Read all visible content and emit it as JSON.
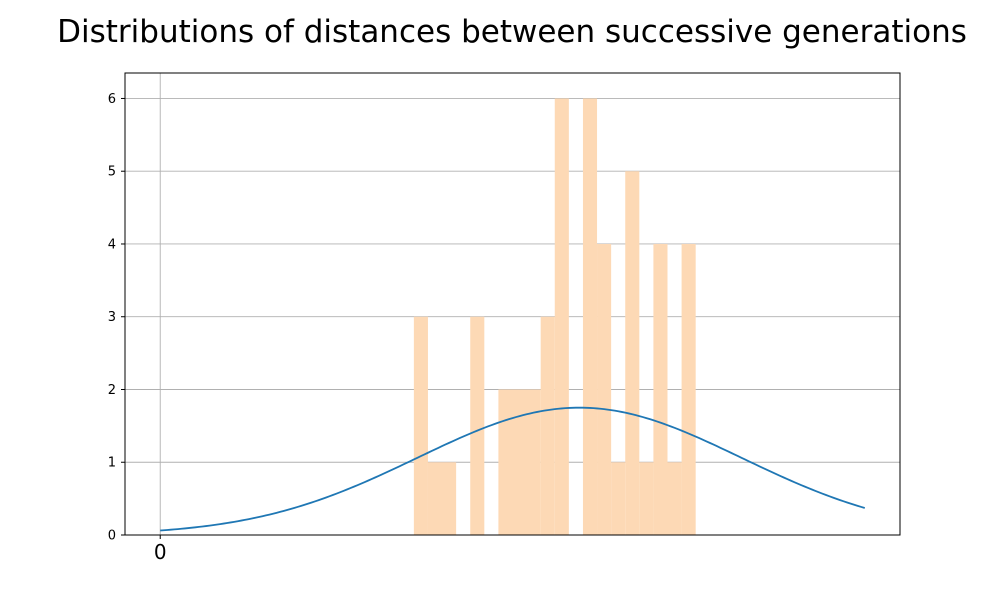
{
  "chart_data": {
    "type": "bar",
    "title": "Distributions of distances between successive generations",
    "xlabel": "",
    "ylabel": "",
    "ylim": [
      0,
      6.35
    ],
    "xlim": [
      -0.5,
      10.5
    ],
    "x_ticks": [
      {
        "value": 0,
        "label": "0"
      }
    ],
    "y_ticks": [
      0,
      1,
      2,
      3,
      4,
      5,
      6
    ],
    "grid": true,
    "colors": {
      "bars": "#fdd9b5",
      "curve": "#1f77b4",
      "grid": "#b0b0b0"
    },
    "series": [
      {
        "kind": "histogram",
        "bins": [
          {
            "x0": 3.6,
            "x1": 3.8,
            "count": 3
          },
          {
            "x0": 3.8,
            "x1": 4.2,
            "count": 1
          },
          {
            "x0": 4.4,
            "x1": 4.6,
            "count": 3
          },
          {
            "x0": 4.8,
            "x1": 5.4,
            "count": 2
          },
          {
            "x0": 5.4,
            "x1": 5.6,
            "count": 3
          },
          {
            "x0": 5.6,
            "x1": 5.8,
            "count": 6
          },
          {
            "x0": 6.0,
            "x1": 6.2,
            "count": 6
          },
          {
            "x0": 6.2,
            "x1": 6.4,
            "count": 4
          },
          {
            "x0": 6.4,
            "x1": 6.6,
            "count": 1
          },
          {
            "x0": 6.6,
            "x1": 6.8,
            "count": 5
          },
          {
            "x0": 6.8,
            "x1": 7.0,
            "count": 1
          },
          {
            "x0": 7.0,
            "x1": 7.2,
            "count": 4
          },
          {
            "x0": 7.2,
            "x1": 7.4,
            "count": 1
          },
          {
            "x0": 7.4,
            "x1": 7.6,
            "count": 4
          }
        ]
      },
      {
        "kind": "curve",
        "x_range": [
          0,
          10
        ],
        "peak": 1.75,
        "mean": 5.95,
        "std": 2.3
      }
    ]
  }
}
